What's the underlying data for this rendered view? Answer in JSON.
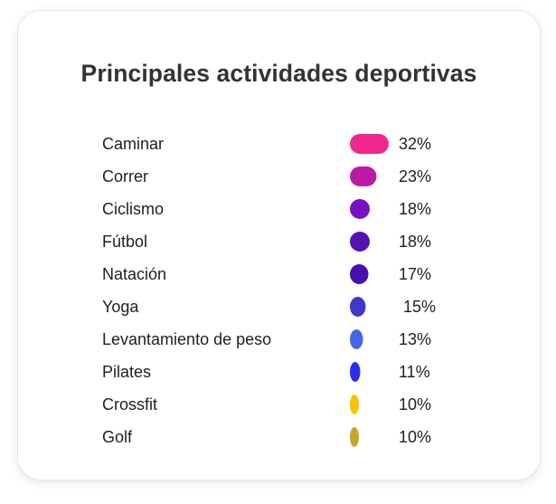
{
  "chart_data": {
    "type": "bar",
    "title": "Principales actividades deportivas",
    "categories": [
      "Caminar",
      "Correr",
      "Ciclismo",
      "Fútbol",
      "Natación",
      "Yoga",
      "Levantamiento de peso",
      "Pilates",
      "Crossfit",
      "Golf"
    ],
    "values": [
      32,
      23,
      18,
      18,
      17,
      15,
      13,
      11,
      10,
      10
    ],
    "value_labels": [
      "32%",
      "23%",
      "18%",
      "18%",
      "17%",
      "15%",
      "13%",
      "11%",
      "10%",
      "10%"
    ],
    "colors": [
      "#f0288c",
      "#bd1aa6",
      "#7a10c2",
      "#5611b5",
      "#4a0fad",
      "#3e38cc",
      "#4466e6",
      "#2b2ef0",
      "#f5c400",
      "#c9a62a"
    ]
  }
}
